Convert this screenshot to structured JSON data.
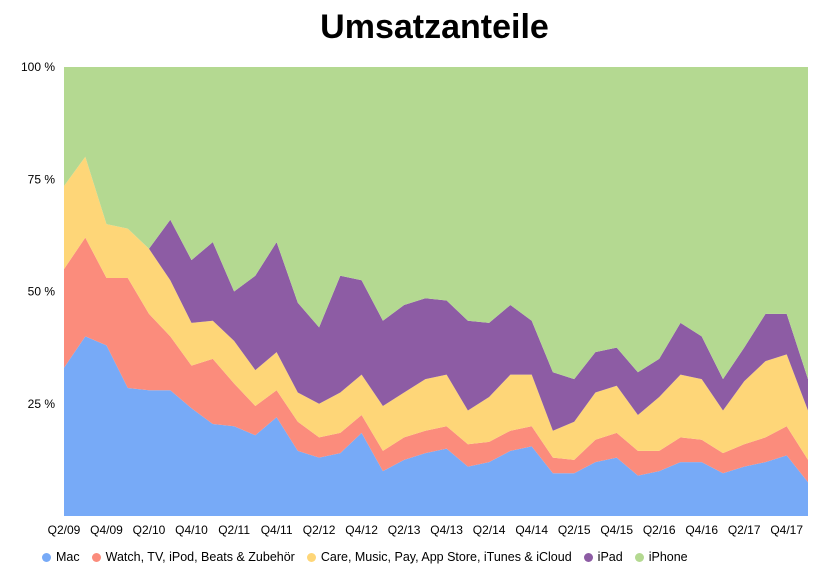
{
  "chart_data": {
    "type": "area",
    "stacked": true,
    "title": "Umsatzanteile",
    "y_tick_labels": [
      "100 %",
      "75 %",
      "50 %",
      "25 %"
    ],
    "y_ticks": [
      100,
      75,
      50,
      25
    ],
    "ylim": [
      0,
      100
    ],
    "grid": false,
    "legend_position": "bottom",
    "x_tick_labels": [
      "Q2/09",
      "Q4/09",
      "Q2/10",
      "Q4/10",
      "Q2/11",
      "Q4/11",
      "Q2/12",
      "Q4/12",
      "Q2/13",
      "Q4/13",
      "Q2/14",
      "Q4/14",
      "Q2/15",
      "Q4/15",
      "Q2/16",
      "Q4/16",
      "Q2/17",
      "Q4/17"
    ],
    "x": [
      "Q2/09",
      "Q3/09",
      "Q4/09",
      "Q1/10",
      "Q2/10",
      "Q3/10",
      "Q4/10",
      "Q1/11",
      "Q2/11",
      "Q3/11",
      "Q4/11",
      "Q1/12",
      "Q2/12",
      "Q3/12",
      "Q4/12",
      "Q1/13",
      "Q2/13",
      "Q3/13",
      "Q4/13",
      "Q1/14",
      "Q2/14",
      "Q3/14",
      "Q4/14",
      "Q1/15",
      "Q2/15",
      "Q3/15",
      "Q4/15",
      "Q1/16",
      "Q2/16",
      "Q3/16",
      "Q4/16",
      "Q1/17",
      "Q2/17",
      "Q3/17",
      "Q4/17",
      "Q1/18"
    ],
    "series": [
      {
        "name": "Mac",
        "color": "#77aaf7",
        "values": [
          33,
          40,
          38,
          28.5,
          28,
          28,
          24,
          20.5,
          20,
          18,
          22,
          14.5,
          13,
          14,
          18.5,
          10,
          12.5,
          14,
          15,
          11,
          12,
          14.5,
          15.5,
          9.5,
          9.5,
          12,
          13,
          9,
          10,
          12,
          12,
          9.5,
          11,
          12,
          13.5,
          7.5
        ]
      },
      {
        "name": "Watch, TV, iPod, Beats & Zubehör",
        "color": "#fb8c7c",
        "values": [
          22,
          22,
          15,
          24.5,
          17,
          12,
          9.5,
          14.5,
          9.5,
          6.5,
          6,
          6.5,
          4.5,
          4.5,
          4,
          4.5,
          5,
          5,
          5,
          5,
          4.5,
          4.5,
          4.5,
          3.5,
          3,
          5,
          5.5,
          5.5,
          4.5,
          5.5,
          5,
          4.5,
          5,
          5.5,
          6.5,
          5
        ]
      },
      {
        "name": "Care, Music, Pay, App Store, iTunes & iCloud",
        "color": "#fed678",
        "values": [
          18.5,
          18,
          12,
          11,
          14.5,
          12.5,
          9.5,
          8.5,
          9.5,
          8,
          8.5,
          6.5,
          7.5,
          9,
          9,
          10,
          10,
          11.5,
          11.5,
          7.5,
          10,
          12.5,
          11.5,
          6,
          8.5,
          10.5,
          10.5,
          8,
          12,
          14,
          13.5,
          9.5,
          14,
          17,
          16,
          11
        ]
      },
      {
        "name": "iPad",
        "color": "#8d5ca4",
        "values": [
          0,
          0,
          0,
          0,
          0,
          13.5,
          14,
          17.5,
          11,
          21,
          24.5,
          20,
          17,
          26,
          21,
          19,
          19.5,
          18,
          16.5,
          20,
          16.5,
          15.5,
          12,
          13,
          9.5,
          9,
          8.5,
          9.5,
          8.5,
          11.5,
          9.5,
          7,
          7.5,
          10.5,
          9,
          7
        ]
      },
      {
        "name": "iPhone",
        "color": "#b4d991",
        "values": [
          26.5,
          20,
          35,
          36,
          40.5,
          34,
          43,
          39,
          50,
          46.5,
          39,
          52.5,
          58,
          46.5,
          47.5,
          56.5,
          53,
          51.5,
          52,
          56.5,
          57,
          53,
          56.5,
          68,
          69.5,
          63.5,
          62.5,
          68,
          65,
          57,
          60,
          69.5,
          62.5,
          55,
          55,
          69.5
        ]
      }
    ]
  },
  "legend": {
    "items": [
      {
        "label": "Mac",
        "color": "#77aaf7"
      },
      {
        "label": "Watch, TV, iPod, Beats & Zubehör",
        "color": "#fb8c7c"
      },
      {
        "label": "Care, Music, Pay, App Store, iTunes & iCloud",
        "color": "#fed678"
      },
      {
        "label": "iPad",
        "color": "#8d5ca4"
      },
      {
        "label": "iPhone",
        "color": "#b4d991"
      }
    ]
  }
}
